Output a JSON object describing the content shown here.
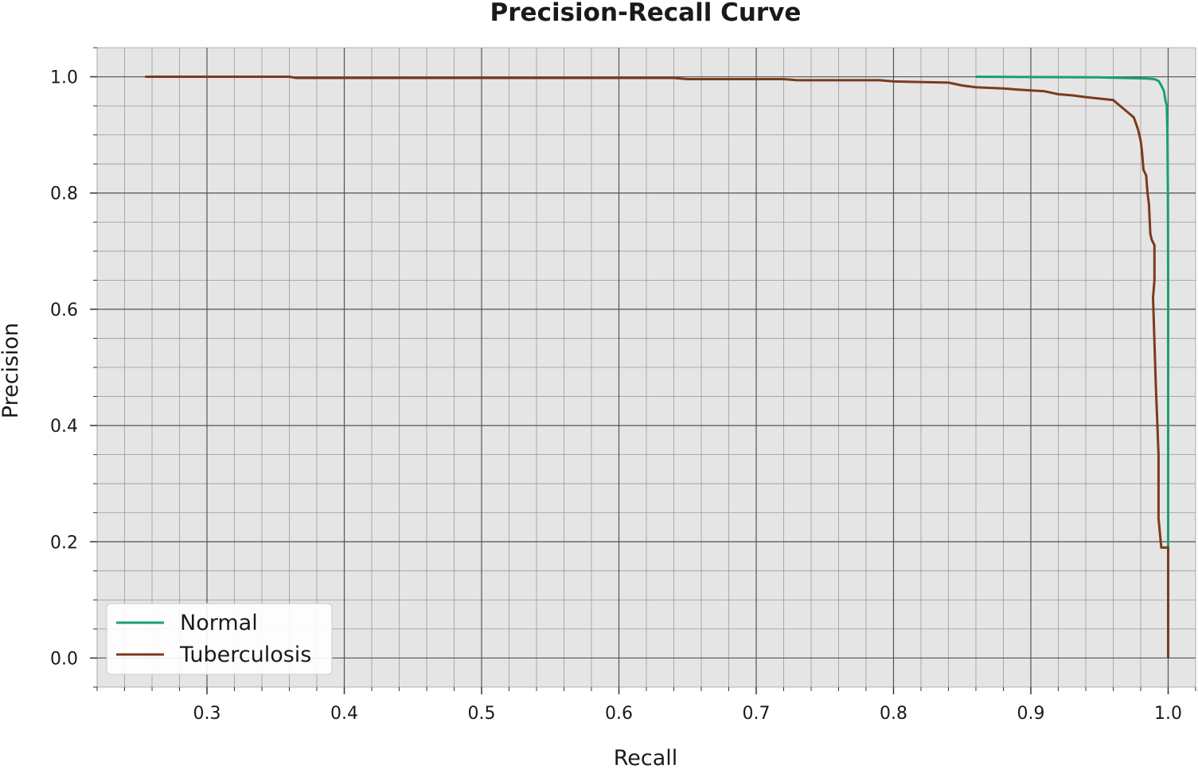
{
  "chart_data": {
    "type": "line",
    "title": "Precision-Recall Curve",
    "xlabel": "Recall",
    "ylabel": "Precision",
    "xlim": [
      0.22,
      1.02
    ],
    "ylim": [
      -0.05,
      1.05
    ],
    "xticks": [
      0.3,
      0.4,
      0.5,
      0.6,
      0.7,
      0.8,
      0.9,
      1.0
    ],
    "xtick_labels": [
      "0.3",
      "0.4",
      "0.5",
      "0.6",
      "0.7",
      "0.8",
      "0.9",
      "1.0"
    ],
    "yticks": [
      0.0,
      0.2,
      0.4,
      0.6,
      0.8,
      1.0
    ],
    "ytick_labels": [
      "0.0",
      "0.2",
      "0.4",
      "0.6",
      "0.8",
      "1.0"
    ],
    "grid": true,
    "legend_position": "bottom-left",
    "background": "#e5e5e5",
    "series": [
      {
        "name": "Normal",
        "color": "#1aa06e",
        "x": [
          0.86,
          0.95,
          0.985,
          0.99,
          0.993,
          0.995,
          0.997,
          0.998,
          0.999,
          0.9995,
          0.9998,
          1.0,
          1.0,
          1.0,
          1.0
        ],
        "y": [
          1.0,
          0.999,
          0.997,
          0.996,
          0.993,
          0.985,
          0.975,
          0.96,
          0.95,
          0.9,
          0.8,
          0.65,
          0.42,
          0.19,
          0.0
        ]
      },
      {
        "name": "Tuberculosis",
        "color": "#7b3b1c",
        "x": [
          0.255,
          0.36,
          0.365,
          0.64,
          0.65,
          0.72,
          0.73,
          0.79,
          0.8,
          0.84,
          0.85,
          0.86,
          0.88,
          0.89,
          0.91,
          0.92,
          0.93,
          0.94,
          0.96,
          0.965,
          0.97,
          0.975,
          0.978,
          0.98,
          0.981,
          0.982,
          0.984,
          0.985,
          0.986,
          0.987,
          0.988,
          0.99,
          0.99,
          0.989,
          0.991,
          0.993,
          0.993,
          0.995,
          1.0,
          1.0
        ],
        "y": [
          1.0,
          1.0,
          0.998,
          0.998,
          0.996,
          0.996,
          0.994,
          0.994,
          0.992,
          0.99,
          0.985,
          0.982,
          0.98,
          0.978,
          0.975,
          0.97,
          0.968,
          0.965,
          0.96,
          0.95,
          0.94,
          0.93,
          0.91,
          0.89,
          0.87,
          0.84,
          0.83,
          0.8,
          0.78,
          0.73,
          0.72,
          0.71,
          0.65,
          0.62,
          0.47,
          0.35,
          0.24,
          0.19,
          0.19,
          0.0
        ]
      }
    ]
  }
}
